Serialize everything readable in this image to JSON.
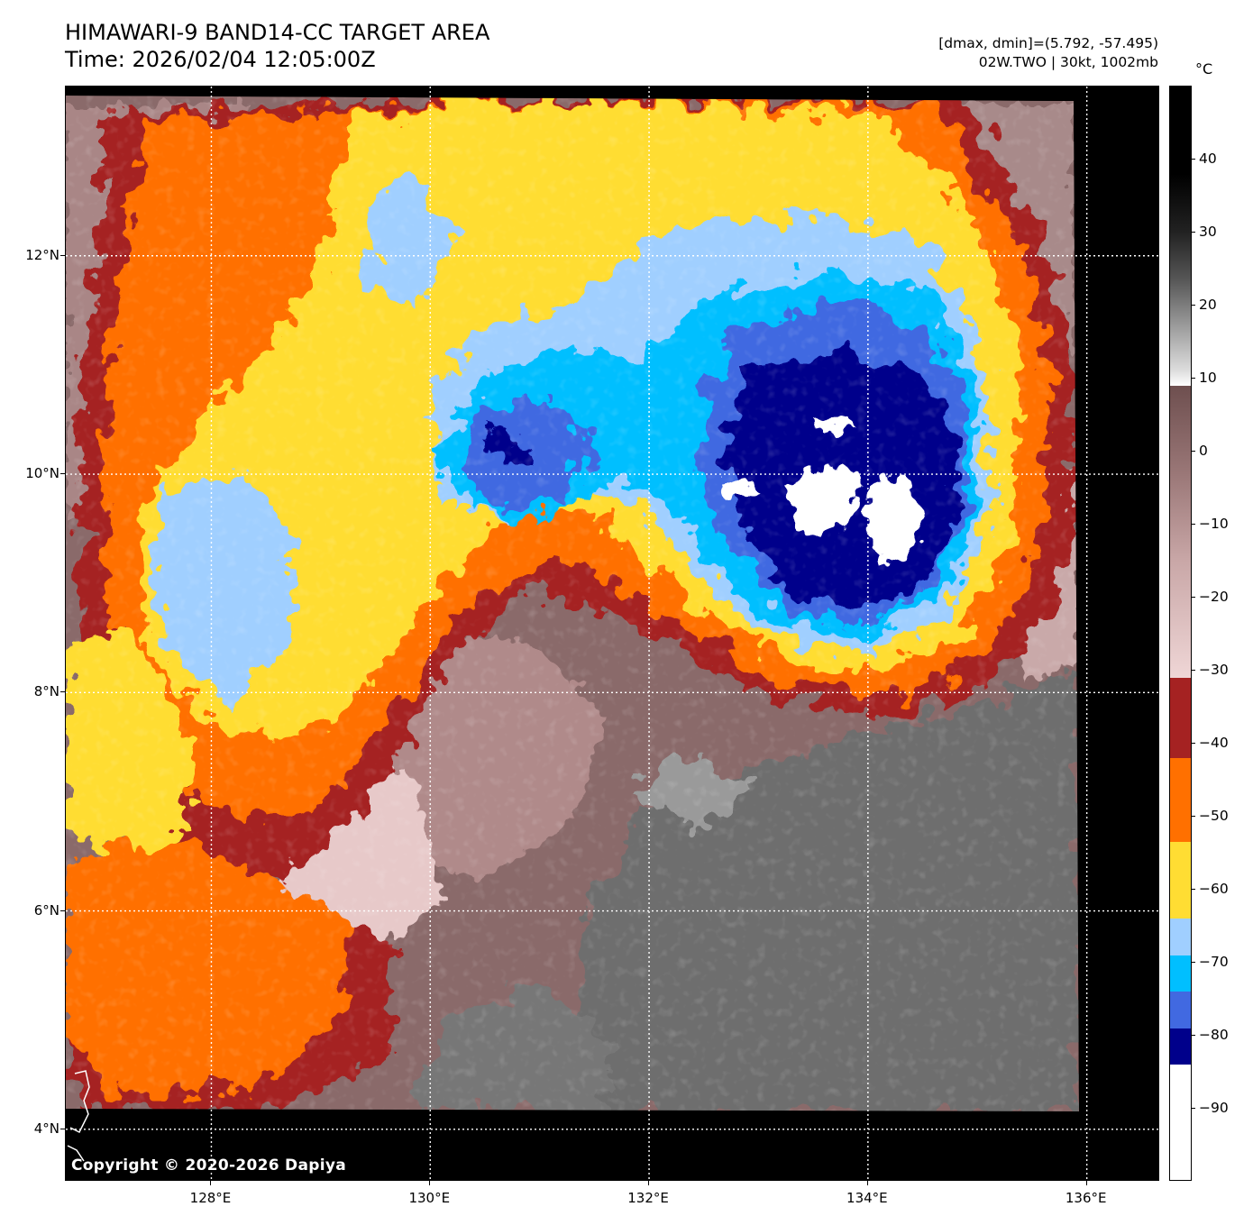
{
  "header": {
    "title_line1": "HIMAWARI-9 BAND14-CC TARGET AREA",
    "title_line2": "Time: 2026/02/04 12:05:00Z",
    "meta_line1": "[dmax, dmin]=(5.792, -57.495)",
    "meta_line2": "02W.TWO | 30kt, 1002mb"
  },
  "map": {
    "copyright": "Copyright © 2020-2026 Dapiya",
    "lat_labels": [
      "12°N",
      "10°N",
      "8°N",
      "6°N",
      "4°N"
    ],
    "lon_labels": [
      "128°E",
      "130°E",
      "132°E",
      "134°E",
      "136°E"
    ],
    "lat_values": [
      12,
      10,
      8,
      6,
      4
    ],
    "lon_values": [
      128,
      130,
      132,
      134,
      136
    ],
    "extent": {
      "lon_min": 126.67,
      "lon_max": 136.67,
      "lat_min": 3.52,
      "lat_max": 13.55
    }
  },
  "colorbar": {
    "unit": "°C",
    "labels": [
      "40",
      "30",
      "20",
      "10",
      "0",
      "−10",
      "−20",
      "−30",
      "−40",
      "−50",
      "−60",
      "−70",
      "−80",
      "−90"
    ],
    "label_values": [
      40,
      30,
      20,
      10,
      0,
      -10,
      -20,
      -30,
      -40,
      -50,
      -60,
      -70,
      -80,
      -90
    ],
    "range": [
      -100,
      50
    ],
    "colors": {
      "deep_blue": "#00008b",
      "royal_blue": "#4169e1",
      "cyan": "#00bfff",
      "light_blue": "#a0cfff",
      "yellow": "#ffdd33",
      "orange": "#ff7000",
      "dark_red": "#a52222",
      "pink": "#f0d8d8",
      "brown": "#7a5a5a",
      "gray": "#707070",
      "white": "#ffffff",
      "black": "#000000"
    }
  }
}
